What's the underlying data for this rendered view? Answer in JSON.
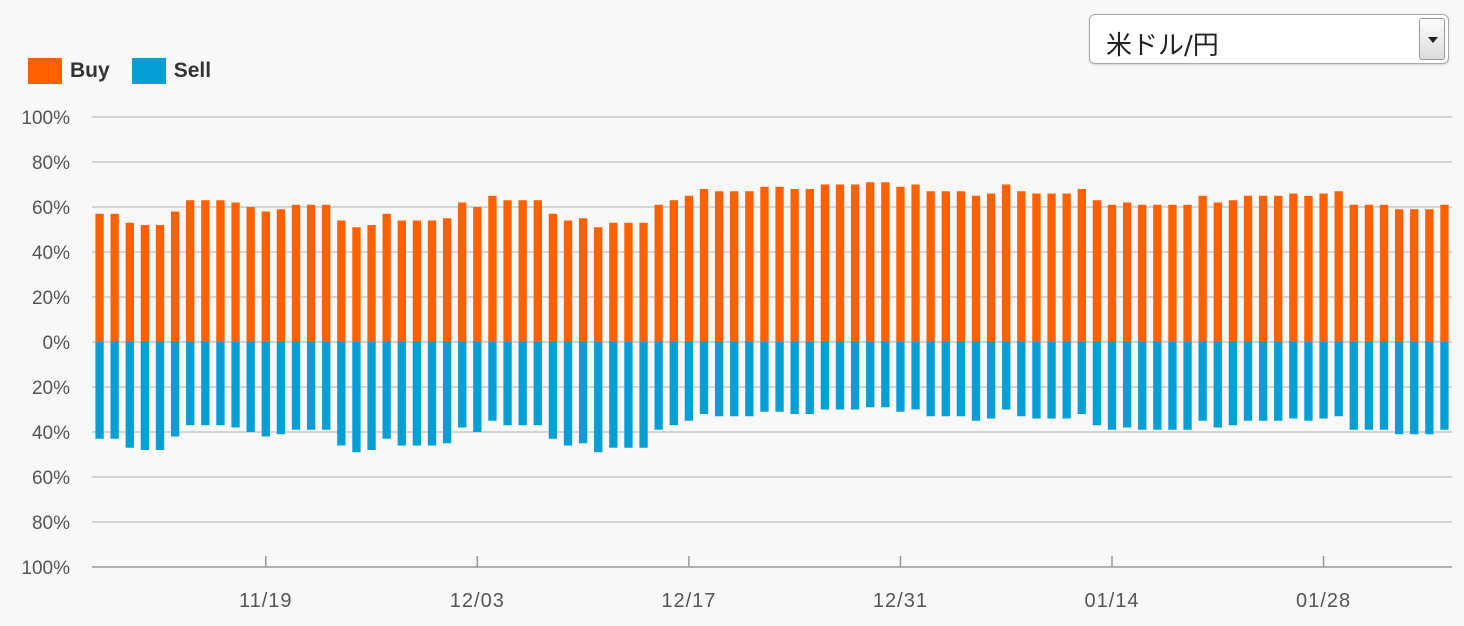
{
  "legend": {
    "buy_label": "Buy",
    "sell_label": "Sell"
  },
  "selector": {
    "value": "米ドル/円"
  },
  "colors": {
    "buy": "#ff6000",
    "sell": "#059fd6",
    "grid": "#c8c8c8",
    "axis": "#999999",
    "text": "#555555"
  },
  "chart_data": {
    "type": "bar",
    "stacked": "diverging",
    "series": [
      {
        "name": "Buy",
        "values": [
          57,
          57,
          53,
          52,
          52,
          58,
          63,
          63,
          63,
          62,
          60,
          58,
          59,
          61,
          61,
          61,
          54,
          51,
          52,
          57,
          54,
          54,
          54,
          55,
          62,
          60,
          65,
          63,
          63,
          63,
          57,
          54,
          55,
          51,
          53,
          53,
          53,
          61,
          63,
          65,
          68,
          67,
          67,
          67,
          69,
          69,
          68,
          68,
          70,
          70,
          70,
          71,
          71,
          69,
          70,
          67,
          67,
          67,
          65,
          66,
          70,
          67,
          66,
          66,
          66,
          68,
          63,
          61,
          62,
          61,
          61,
          61,
          61,
          65,
          62,
          63,
          65,
          65,
          65,
          66,
          65,
          66,
          67,
          61,
          61,
          61,
          59,
          59,
          59,
          61
        ]
      },
      {
        "name": "Sell",
        "values": [
          43,
          43,
          47,
          48,
          48,
          42,
          37,
          37,
          37,
          38,
          40,
          42,
          41,
          39,
          39,
          39,
          46,
          49,
          48,
          43,
          46,
          46,
          46,
          45,
          38,
          40,
          35,
          37,
          37,
          37,
          43,
          46,
          45,
          49,
          47,
          47,
          47,
          39,
          37,
          35,
          32,
          33,
          33,
          33,
          31,
          31,
          32,
          32,
          30,
          30,
          30,
          29,
          29,
          31,
          30,
          33,
          33,
          33,
          35,
          34,
          30,
          33,
          34,
          34,
          34,
          32,
          37,
          39,
          38,
          39,
          39,
          39,
          39,
          35,
          38,
          37,
          35,
          35,
          35,
          34,
          35,
          34,
          33,
          39,
          39,
          39,
          41,
          41,
          41,
          39
        ]
      }
    ],
    "y_ticks_top": [
      "100%",
      "80%",
      "60%",
      "40%",
      "20%",
      "0%"
    ],
    "y_ticks_bottom": [
      "20%",
      "40%",
      "60%",
      "80%",
      "100%"
    ],
    "ylim": [
      -100,
      100
    ],
    "x_ticks": [
      {
        "label": "11/19",
        "index": 11
      },
      {
        "label": "12/03",
        "index": 25
      },
      {
        "label": "12/17",
        "index": 39
      },
      {
        "label": "12/31",
        "index": 53
      },
      {
        "label": "01/14",
        "index": 67
      },
      {
        "label": "01/28",
        "index": 81
      }
    ],
    "grid": true,
    "legend_position": "top-left"
  }
}
